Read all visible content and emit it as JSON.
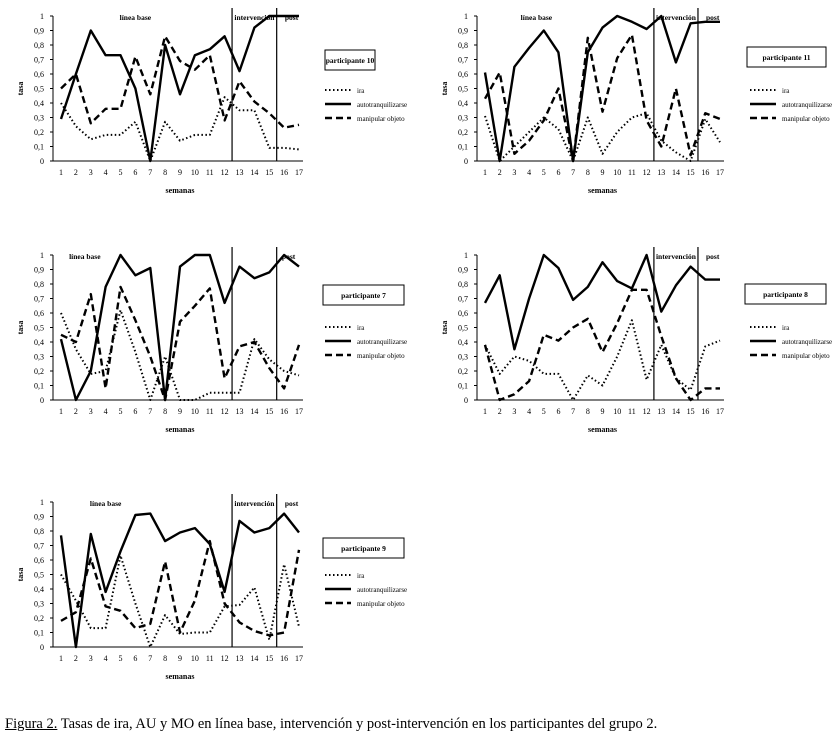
{
  "caption": {
    "label": "Figura 2.",
    "text": " Tasas de ira, AU y MO en línea base, intervención  y post-intervención en los participantes del grupo 2."
  },
  "legend_labels": [
    "ira",
    "autotranquilizarse",
    "manipular objeto"
  ],
  "chart_data": [
    {
      "type": "line",
      "title": "participante 10",
      "xlabel": "semanas",
      "ylabel": "tasa",
      "x": [
        1,
        2,
        3,
        4,
        5,
        6,
        7,
        8,
        9,
        10,
        11,
        12,
        13,
        14,
        15,
        16,
        17
      ],
      "ylim": [
        0,
        1
      ],
      "yticks": [
        "0",
        "0,1",
        "0,2",
        "0,3",
        "0,4",
        "0,5",
        "0,6",
        "0,7",
        "0,8",
        "0,9",
        "1"
      ],
      "phase_lines": [
        12.5,
        15.5
      ],
      "phase_labels": [
        {
          "text": "línea base",
          "x": 6
        },
        {
          "text": "intervención",
          "x": 14.0
        },
        {
          "text": "post",
          "x": 16.5
        }
      ],
      "series": [
        {
          "name": "ira",
          "style": "dotted",
          "values": [
            0.4,
            0.24,
            0.15,
            0.18,
            0.18,
            0.27,
            0.0,
            0.27,
            0.14,
            0.18,
            0.18,
            0.44,
            0.35,
            0.35,
            0.09,
            0.09,
            0.08
          ]
        },
        {
          "name": "autotranquilizarse",
          "style": "solid",
          "values": [
            0.29,
            0.6,
            0.9,
            0.73,
            0.73,
            0.5,
            0.0,
            0.8,
            0.46,
            0.73,
            0.77,
            0.86,
            0.62,
            0.92,
            1.0,
            1.0,
            1.0
          ]
        },
        {
          "name": "manipular objeto",
          "style": "dashed",
          "values": [
            0.5,
            0.6,
            0.26,
            0.36,
            0.36,
            0.72,
            0.46,
            0.86,
            0.69,
            0.63,
            0.73,
            0.28,
            0.55,
            0.41,
            0.33,
            0.23,
            0.25
          ]
        }
      ]
    },
    {
      "type": "line",
      "title": "participante 11",
      "xlabel": "semanas",
      "ylabel": "tasa",
      "x": [
        1,
        2,
        3,
        4,
        5,
        6,
        7,
        8,
        9,
        10,
        11,
        12,
        13,
        14,
        15,
        16,
        17
      ],
      "ylim": [
        0,
        1
      ],
      "yticks": [
        "0",
        "0,1",
        "0,2",
        "0,3",
        "0,4",
        "0,5",
        "0,6",
        "0,7",
        "0,8",
        "0,9",
        "1"
      ],
      "phase_lines": [
        12.5,
        15.5
      ],
      "phase_labels": [
        {
          "text": "línea base",
          "x": 4.5
        },
        {
          "text": "intervención",
          "x": 14.0
        },
        {
          "text": "post",
          "x": 16.5
        }
      ],
      "series": [
        {
          "name": "ira",
          "style": "dotted",
          "values": [
            0.31,
            0.0,
            0.1,
            0.2,
            0.3,
            0.22,
            0.0,
            0.3,
            0.05,
            0.2,
            0.3,
            0.33,
            0.14,
            0.06,
            0.0,
            0.29,
            0.13
          ]
        },
        {
          "name": "autotranquilizarse",
          "style": "solid",
          "values": [
            0.61,
            0.0,
            0.65,
            0.78,
            0.9,
            0.75,
            0.0,
            0.75,
            0.92,
            1.0,
            0.96,
            0.91,
            1.0,
            0.68,
            0.95,
            0.96,
            0.96
          ]
        },
        {
          "name": "manipular objeto",
          "style": "dashed",
          "values": [
            0.43,
            0.61,
            0.05,
            0.14,
            0.28,
            0.5,
            0.0,
            0.85,
            0.34,
            0.71,
            0.87,
            0.28,
            0.1,
            0.5,
            0.04,
            0.33,
            0.29
          ]
        }
      ]
    },
    {
      "type": "line",
      "title": "participante 7",
      "xlabel": "semanas",
      "ylabel": "tasa",
      "x": [
        1,
        2,
        3,
        4,
        5,
        6,
        7,
        8,
        9,
        10,
        11,
        12,
        13,
        14,
        15,
        16,
        17
      ],
      "ylim": [
        0,
        1
      ],
      "yticks": [
        "0",
        "0,1",
        "0,2",
        "0,3",
        "0,4",
        "0,5",
        "0,6",
        "0,7",
        "0,8",
        "0,9",
        "1"
      ],
      "phase_lines": [
        12.5,
        15.5
      ],
      "phase_labels": [
        {
          "text": "línea base",
          "x": 2.6
        },
        {
          "text": "post",
          "x": 16.3
        }
      ],
      "series": [
        {
          "name": "ira",
          "style": "dotted",
          "values": [
            0.6,
            0.35,
            0.18,
            0.2,
            0.62,
            0.33,
            0.0,
            0.3,
            0.0,
            0.0,
            0.05,
            0.05,
            0.05,
            0.42,
            0.28,
            0.2,
            0.17
          ]
        },
        {
          "name": "autotranquilizarse",
          "style": "solid",
          "values": [
            0.42,
            0.0,
            0.2,
            0.78,
            1.0,
            0.86,
            0.91,
            0.0,
            0.92,
            1.0,
            1.0,
            0.67,
            0.92,
            0.84,
            0.88,
            1.0,
            0.92
          ]
        },
        {
          "name": "manipular objeto",
          "style": "dashed",
          "values": [
            0.45,
            0.4,
            0.73,
            0.08,
            0.78,
            0.55,
            0.3,
            0.0,
            0.54,
            0.65,
            0.77,
            0.15,
            0.37,
            0.4,
            0.22,
            0.08,
            0.38
          ]
        }
      ]
    },
    {
      "type": "line",
      "title": "participante 8",
      "xlabel": "semanas",
      "ylabel": "tasa",
      "x": [
        1,
        2,
        3,
        4,
        5,
        6,
        7,
        8,
        9,
        10,
        11,
        12,
        13,
        14,
        15,
        16,
        17
      ],
      "ylim": [
        0,
        1
      ],
      "yticks": [
        "0",
        "0,1",
        "0,2",
        "0,3",
        "0,4",
        "0,5",
        "0,6",
        "0,7",
        "0,8",
        "0,9",
        "1"
      ],
      "phase_lines": [
        12.5,
        15.5
      ],
      "phase_labels": [
        {
          "text": "intervención",
          "x": 14.0
        },
        {
          "text": "post",
          "x": 16.5
        }
      ],
      "series": [
        {
          "name": "ira",
          "style": "dotted",
          "values": [
            0.38,
            0.18,
            0.3,
            0.27,
            0.18,
            0.18,
            0.0,
            0.17,
            0.1,
            0.3,
            0.55,
            0.14,
            0.38,
            0.15,
            0.07,
            0.37,
            0.41
          ]
        },
        {
          "name": "autotranquilizarse",
          "style": "solid",
          "values": [
            0.67,
            0.86,
            0.35,
            0.7,
            1.0,
            0.91,
            0.69,
            0.78,
            0.95,
            0.82,
            0.77,
            1.0,
            0.61,
            0.79,
            0.92,
            0.83,
            0.83
          ]
        },
        {
          "name": "manipular objeto",
          "style": "dashed",
          "values": [
            0.38,
            0.0,
            0.04,
            0.13,
            0.45,
            0.41,
            0.5,
            0.56,
            0.33,
            0.53,
            0.76,
            0.76,
            0.44,
            0.15,
            0.0,
            0.08,
            0.08
          ]
        }
      ]
    },
    {
      "type": "line",
      "title": "participante 9",
      "xlabel": "semanas",
      "ylabel": "tasa",
      "x": [
        1,
        2,
        3,
        4,
        5,
        6,
        7,
        8,
        9,
        10,
        11,
        12,
        13,
        14,
        15,
        16,
        17
      ],
      "ylim": [
        0,
        1
      ],
      "yticks": [
        "0",
        "0,1",
        "0,2",
        "0,3",
        "0,4",
        "0,5",
        "0,6",
        "0,7",
        "0,8",
        "0,9",
        "1"
      ],
      "phase_lines": [
        12.5,
        15.5
      ],
      "phase_labels": [
        {
          "text": "línea base",
          "x": 4.0
        },
        {
          "text": "intervención",
          "x": 14.0
        },
        {
          "text": "post",
          "x": 16.5
        }
      ],
      "series": [
        {
          "name": "ira",
          "style": "dotted",
          "values": [
            0.5,
            0.32,
            0.13,
            0.13,
            0.63,
            0.3,
            0.0,
            0.22,
            0.09,
            0.1,
            0.1,
            0.28,
            0.29,
            0.41,
            0.05,
            0.57,
            0.14
          ]
        },
        {
          "name": "autotranquilizarse",
          "style": "solid",
          "values": [
            0.77,
            0.0,
            0.78,
            0.38,
            0.66,
            0.91,
            0.92,
            0.73,
            0.79,
            0.82,
            0.71,
            0.38,
            0.87,
            0.79,
            0.82,
            0.92,
            0.79
          ]
        },
        {
          "name": "manipular objeto",
          "style": "dashed",
          "values": [
            0.18,
            0.24,
            0.61,
            0.28,
            0.25,
            0.13,
            0.16,
            0.59,
            0.1,
            0.32,
            0.73,
            0.3,
            0.17,
            0.11,
            0.08,
            0.1,
            0.67
          ]
        }
      ]
    }
  ]
}
